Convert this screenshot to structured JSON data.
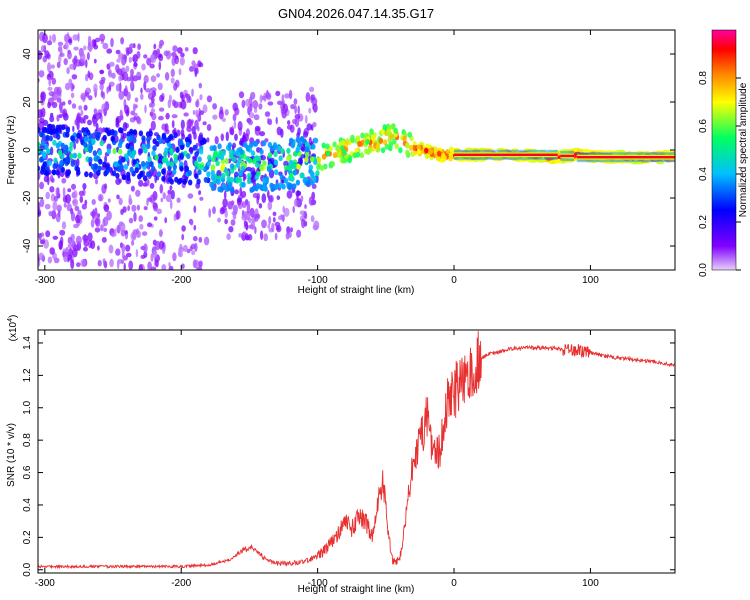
{
  "figure": {
    "title": "GN04.2026.047.14.35.G17"
  },
  "chart_data": [
    {
      "type": "heatmap",
      "title": "GN04.2026.047.14.35.G17",
      "xlabel": "Height of straight line (km)",
      "ylabel": "Frequency (Hz)",
      "xlim": [
        -305,
        162
      ],
      "ylim": [
        -50,
        50
      ],
      "x_ticks": [
        -300,
        -200,
        -100,
        0,
        100
      ],
      "x_tick_labels": [
        "-300",
        "-200",
        "-100",
        "0",
        "100"
      ],
      "y_ticks": [
        -40,
        -20,
        0,
        20,
        40
      ],
      "y_tick_labels": [
        "-40",
        "-20",
        "0",
        "20",
        "40"
      ],
      "colorbar": {
        "label": "Normalized spectral amplitude",
        "range": [
          0.0,
          1.0
        ],
        "ticks": [
          0.0,
          0.2,
          0.4,
          0.6,
          0.8
        ],
        "tick_labels": [
          "0.0",
          "0.2",
          "0.4",
          "0.6",
          "0.8"
        ],
        "colormap": [
          "#e8d0f8",
          "#8000ff",
          "#0000ff",
          "#00c0ff",
          "#00ff60",
          "#ffff00",
          "#ff8000",
          "#ff0000",
          "#ff00a0"
        ]
      },
      "ridge": {
        "x": [
          -305,
          -250,
          -200,
          -170,
          -150,
          -120,
          -100,
          -80,
          -60,
          -45,
          -30,
          -10,
          0,
          20,
          50,
          75,
          90,
          110,
          130,
          162
        ],
        "frequency": [
          0,
          -1,
          -4,
          -7,
          -7,
          -6,
          -4,
          0,
          3,
          6,
          1,
          -2,
          -2,
          -2,
          -2,
          -3,
          -2,
          -3,
          -3,
          -3
        ]
      },
      "grid": false,
      "legend": "none"
    },
    {
      "type": "line",
      "xlabel": "Height of straight line (km)",
      "ylabel": "SNR (10 * v/v)",
      "y_multiplier": "(x10",
      "y_multiplier_exponent": "4",
      "y_multiplier_close": ")",
      "xlim": [
        -305,
        162
      ],
      "ylim": [
        -0.02,
        1.48
      ],
      "x_ticks": [
        -300,
        -200,
        -100,
        0,
        100
      ],
      "x_tick_labels": [
        "-300",
        "-200",
        "-100",
        "0",
        "100"
      ],
      "y_ticks": [
        0.0,
        0.2,
        0.4,
        0.6,
        0.8,
        1.0,
        1.2,
        1.4
      ],
      "y_tick_labels": [
        "0.0",
        "0.2",
        "0.4",
        "0.6",
        "0.8",
        "1.0",
        "1.2",
        "1.4"
      ],
      "line_color": "#e83030",
      "series": [
        {
          "x": [
            -305,
            -250,
            -200,
            -180,
            -165,
            -155,
            -148,
            -140,
            -130,
            -120,
            -110,
            -100,
            -92,
            -85,
            -80,
            -75,
            -70,
            -65,
            -60,
            -55,
            -52,
            -48,
            -45,
            -40,
            -35,
            -30,
            -25,
            -20,
            -15,
            -10,
            -5,
            0,
            5,
            10,
            15,
            20,
            25,
            30,
            40,
            50,
            60,
            70,
            80,
            85,
            90,
            100,
            110,
            120,
            130,
            140,
            150,
            162
          ],
          "values": [
            0.02,
            0.02,
            0.02,
            0.03,
            0.06,
            0.12,
            0.14,
            0.08,
            0.04,
            0.04,
            0.05,
            0.08,
            0.15,
            0.22,
            0.3,
            0.25,
            0.32,
            0.3,
            0.2,
            0.45,
            0.55,
            0.2,
            0.06,
            0.05,
            0.35,
            0.65,
            0.8,
            0.95,
            0.7,
            0.75,
            1.05,
            1.1,
            1.15,
            1.2,
            1.25,
            1.3,
            1.33,
            1.34,
            1.36,
            1.37,
            1.37,
            1.37,
            1.36,
            1.35,
            1.36,
            1.34,
            1.32,
            1.31,
            1.3,
            1.29,
            1.28,
            1.26
          ]
        }
      ],
      "grid": false,
      "legend": "none"
    }
  ]
}
